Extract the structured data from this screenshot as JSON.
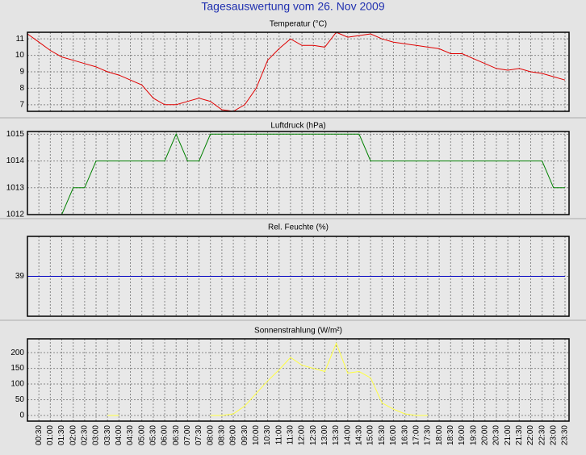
{
  "title": "Tagesauswertung vom 26. Nov 2009",
  "chart_data": [
    {
      "type": "line",
      "title": "Temperatur (°C)",
      "color": "#e00000",
      "grid": true,
      "ylim": [
        6.6,
        11.4
      ],
      "yticks": [
        7,
        8,
        9,
        10,
        11
      ],
      "values": [
        11.3,
        10.8,
        10.3,
        9.9,
        9.7,
        9.5,
        9.3,
        9.0,
        8.8,
        8.5,
        8.2,
        7.4,
        7.0,
        7.0,
        7.2,
        7.4,
        7.2,
        6.7,
        6.6,
        7.0,
        8.0,
        9.7,
        10.4,
        11.0,
        10.6,
        10.6,
        10.5,
        11.4,
        11.1,
        11.2,
        11.3,
        11.0,
        10.8,
        10.7,
        10.6,
        10.5,
        10.4,
        10.1,
        10.1,
        9.8,
        9.5,
        9.2,
        9.1,
        9.2,
        9.0,
        8.9,
        8.7,
        8.5
      ]
    },
    {
      "type": "line",
      "title": "Luftdruck (hPa)",
      "color": "#008000",
      "grid": true,
      "ylim": [
        1012,
        1015.1
      ],
      "yticks": [
        1012,
        1013,
        1014,
        1015
      ],
      "values": [
        1012,
        1012,
        1012,
        1012,
        1013,
        1013,
        1014,
        1014,
        1014,
        1014,
        1014,
        1014,
        1014,
        1015,
        1014,
        1014,
        1015,
        1015,
        1015,
        1015,
        1015,
        1015,
        1015,
        1015,
        1015,
        1015,
        1015,
        1015,
        1015,
        1015,
        1014,
        1014,
        1014,
        1014,
        1014,
        1014,
        1014,
        1014,
        1014,
        1014,
        1014,
        1014,
        1014,
        1014,
        1014,
        1014,
        1013,
        1013
      ]
    },
    {
      "type": "line",
      "title": "Rel. Feuchte (%)",
      "color": "#0000c0",
      "grid": true,
      "ylim": [
        38,
        40
      ],
      "yticks": [
        39
      ],
      "values": [
        39,
        39,
        39,
        39,
        39,
        39,
        39,
        39,
        39,
        39,
        39,
        39,
        39,
        39,
        39,
        39,
        39,
        39,
        39,
        39,
        39,
        39,
        39,
        39,
        39,
        39,
        39,
        39,
        39,
        39,
        39,
        39,
        39,
        39,
        39,
        39,
        39,
        39,
        39,
        39,
        39,
        39,
        39,
        39,
        39,
        39,
        39,
        39
      ]
    },
    {
      "type": "line",
      "title": "Sonnenstrahlung (W/m²)",
      "color": "#ffff40",
      "grid": true,
      "ylim": [
        -18,
        244
      ],
      "yticks": [
        0,
        50,
        100,
        150,
        200
      ],
      "categories": [
        null,
        "00:30",
        "01:00",
        "01:30",
        "02:00",
        "02:30",
        "03:00",
        "03:30",
        "04:00",
        "04:30",
        "05:00",
        "05:30",
        "06:00",
        "06:30",
        "07:00",
        "07:30",
        "08:00",
        "08:30",
        "09:00",
        "09:30",
        "10:00",
        "10:30",
        "11:00",
        "11:30",
        "12:00",
        "12:30",
        "13:00",
        "13:30",
        "14:00",
        "14:30",
        "15:00",
        "15:30",
        "16:00",
        "16:30",
        "17:00",
        "17:30",
        "18:00",
        "18:30",
        "19:00",
        "19:30",
        "20:00",
        "20:30",
        "21:00",
        "21:30",
        "22:00",
        "22:30",
        "23:00",
        "23:30"
      ],
      "values": [
        null,
        null,
        null,
        null,
        null,
        null,
        null,
        0,
        0,
        null,
        null,
        null,
        null,
        null,
        null,
        null,
        0,
        0,
        5,
        30,
        70,
        110,
        145,
        185,
        160,
        150,
        140,
        230,
        135,
        140,
        120,
        40,
        20,
        5,
        0,
        0,
        null,
        null,
        null,
        null,
        null,
        null,
        null,
        null,
        null,
        null,
        null,
        null
      ]
    }
  ]
}
